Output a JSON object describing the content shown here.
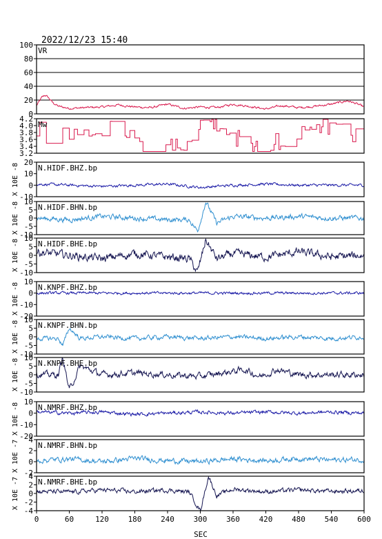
{
  "header": {
    "timestamp": "2022/12/23  15:40"
  },
  "x_axis": {
    "label": "SEC",
    "range": [
      0,
      600
    ],
    "ticks": [
      0,
      60,
      120,
      180,
      240,
      300,
      360,
      420,
      480,
      540,
      600
    ],
    "tick_labels": [
      "0",
      "60",
      "120",
      "180",
      "240",
      "300",
      "360",
      "420",
      "480",
      "540",
      "600"
    ]
  },
  "colors": {
    "vr": "#d8184c",
    "mw": "#d8184c",
    "bhz": "#1a1aa6",
    "bhn": "#2f8fd0",
    "bhe": "#141450",
    "grid": "#000000",
    "frame": "#000000"
  },
  "chart_data": [
    {
      "type": "line",
      "panel": "VR",
      "label": "VR",
      "ylim": [
        0,
        100
      ],
      "yticks": [
        0,
        20,
        40,
        60,
        80,
        100
      ],
      "ytick_labels": [
        "0",
        "20",
        "40",
        "60",
        "80",
        "100"
      ],
      "grid": true,
      "series": [
        {
          "name": "VR",
          "color_key": "vr",
          "shape": "vr",
          "x": [
            0,
            5,
            10,
            15,
            20,
            30,
            40,
            60,
            90,
            120,
            150,
            180,
            210,
            240,
            270,
            300,
            330,
            360,
            390,
            420,
            450,
            480,
            510,
            540,
            570,
            585,
            600
          ],
          "y": [
            12,
            18,
            24,
            27,
            25,
            16,
            11,
            8,
            9,
            10,
            13,
            10,
            9,
            14,
            8,
            10,
            9,
            14,
            11,
            7,
            12,
            9,
            11,
            14,
            19,
            15,
            10
          ]
        }
      ]
    },
    {
      "type": "line",
      "panel": "Mw",
      "label": "Mw",
      "ylim": [
        3.2,
        4.2
      ],
      "yticks": [
        3.2,
        3.4,
        3.6,
        3.8,
        4.0,
        4.2
      ],
      "ytick_labels": [
        "3.2",
        "3.4",
        "3.6",
        "3.8",
        "4.0",
        "4.2"
      ],
      "grid": false,
      "series": [
        {
          "name": "Mw",
          "color_key": "mw",
          "shape": "mw",
          "x": [
            0,
            10,
            20,
            30,
            40,
            50,
            60,
            80,
            100,
            120,
            140,
            160,
            180,
            200,
            220,
            240,
            260,
            280,
            300,
            320,
            340,
            360,
            380,
            400,
            420,
            440,
            460,
            480,
            500,
            520,
            540,
            560,
            580,
            600
          ],
          "y": [
            3.7,
            3.9,
            3.5,
            3.3,
            3.8,
            3.6,
            3.5,
            4.0,
            3.6,
            3.8,
            3.9,
            4.0,
            3.5,
            3.4,
            4.0,
            3.7,
            3.3,
            3.6,
            4.1,
            4.1,
            3.8,
            3.7,
            3.6,
            3.4,
            3.5,
            3.6,
            3.4,
            3.9,
            3.8,
            4.0,
            3.9,
            4.0,
            3.8,
            3.6
          ]
        }
      ]
    },
    {
      "type": "line",
      "panel": "N.HIDF.BHZ.bp",
      "label": "N.HIDF.BHZ.bp",
      "ylabel": "X 10E -8",
      "ylim": [
        -10,
        20
      ],
      "yticks": [
        -10,
        0,
        10,
        20
      ],
      "ytick_labels": [
        "-10",
        "0",
        "10",
        "20"
      ],
      "grid": false,
      "series": [
        {
          "name": "N.HIDF.BHZ.bp",
          "color_key": "bhz",
          "shape": "noise_small",
          "x": [
            0,
            60,
            120,
            180,
            240,
            300,
            360,
            420,
            480,
            540,
            600
          ],
          "y": [
            1,
            0,
            -1,
            0,
            1,
            -2,
            0,
            1,
            0,
            0,
            0
          ]
        }
      ]
    },
    {
      "type": "line",
      "panel": "N.HIDF.BHN.bp",
      "label": "N.HIDF.BHN.bp",
      "ylabel": "X 10E -8",
      "ylim": [
        -10,
        10
      ],
      "yticks": [
        -10,
        -5,
        0,
        5,
        10
      ],
      "ytick_labels": [
        "-10",
        "-5",
        "0",
        "5",
        "10"
      ],
      "grid": false,
      "series": [
        {
          "name": "N.HIDF.BHN.bp",
          "color_key": "bhn",
          "shape": "pulse_hidf",
          "x": [
            0,
            60,
            120,
            180,
            240,
            280,
            295,
            310,
            330,
            360,
            420,
            480,
            540,
            600
          ],
          "y": [
            0,
            -1,
            1,
            0,
            -1,
            -1,
            -8,
            10,
            -3,
            1,
            0,
            1,
            0,
            0
          ]
        }
      ]
    },
    {
      "type": "line",
      "panel": "N.HIDF.BHE.bp",
      "label": "N.HIDF.BHE.bp",
      "ylabel": "X 10E -8",
      "ylim": [
        -10,
        10
      ],
      "yticks": [
        -10,
        -5,
        0,
        5,
        10
      ],
      "ytick_labels": [
        "-10",
        "-5",
        "0",
        "5",
        "10"
      ],
      "grid": false,
      "series": [
        {
          "name": "N.HIDF.BHE.bp",
          "color_key": "bhe",
          "shape": "pulse_hidf_e",
          "x": [
            0,
            60,
            120,
            180,
            240,
            280,
            295,
            310,
            330,
            360,
            420,
            480,
            540,
            600
          ],
          "y": [
            2,
            0,
            -2,
            1,
            -1,
            -2,
            -10,
            9,
            -2,
            1,
            -1,
            2,
            -1,
            0
          ]
        }
      ]
    },
    {
      "type": "line",
      "panel": "N.KNPF.BHZ.bp",
      "label": "N.KNPF.BHZ.bp",
      "ylabel": "X 10E -8",
      "ylim": [
        -20,
        10
      ],
      "yticks": [
        -20,
        -10,
        0,
        10
      ],
      "ytick_labels": [
        "-20",
        "-10",
        "0",
        "10"
      ],
      "grid": false,
      "series": [
        {
          "name": "N.KNPF.BHZ.bp",
          "color_key": "bhz",
          "shape": "noise_small",
          "x": [
            0,
            60,
            120,
            180,
            240,
            300,
            360,
            420,
            480,
            540,
            600
          ],
          "y": [
            0,
            0,
            0,
            0,
            0,
            0,
            0,
            0,
            0,
            0,
            0
          ]
        }
      ]
    },
    {
      "type": "line",
      "panel": "N.KNPF.BHN.bp",
      "label": "N.KNPF.BHN.bp",
      "ylabel": "X 10E -8",
      "ylim": [
        -10,
        10
      ],
      "yticks": [
        -10,
        -5,
        0,
        5,
        10
      ],
      "ytick_labels": [
        "-10",
        "-5",
        "0",
        "5",
        "10"
      ],
      "grid": false,
      "series": [
        {
          "name": "N.KNPF.BHN.bp",
          "color_key": "bhn",
          "shape": "pulse_knpf_n",
          "x": [
            0,
            40,
            48,
            60,
            80,
            120,
            180,
            240,
            300,
            360,
            420,
            480,
            540,
            600
          ],
          "y": [
            -1,
            -1,
            -5,
            5,
            -1,
            0,
            -1,
            0,
            -1,
            0,
            -1,
            0,
            -1,
            0
          ]
        }
      ]
    },
    {
      "type": "line",
      "panel": "N.KNPF.BHE.bp",
      "label": "N.KNPF.BHE.bp",
      "ylabel": "X 10E -8",
      "ylim": [
        -10,
        10
      ],
      "yticks": [
        -10,
        -5,
        0,
        5,
        10
      ],
      "ytick_labels": [
        "-10",
        "-5",
        "0",
        "5",
        "10"
      ],
      "grid": false,
      "series": [
        {
          "name": "N.KNPF.BHE.bp",
          "color_key": "bhe",
          "shape": "pulse_knpf_e",
          "x": [
            0,
            40,
            48,
            60,
            80,
            120,
            180,
            240,
            300,
            380,
            410,
            440,
            480,
            540,
            600
          ],
          "y": [
            0,
            0,
            10,
            -9,
            5,
            0,
            1,
            0,
            -1,
            3,
            -1,
            3,
            0,
            0,
            0
          ]
        }
      ]
    },
    {
      "type": "line",
      "panel": "N.NMRF.BHZ.bp",
      "label": "N.NMRF.BHZ.bp",
      "ylabel": "X 10E -8",
      "ylim": [
        -20,
        10
      ],
      "yticks": [
        -20,
        -10,
        0,
        10
      ],
      "ytick_labels": [
        "-20",
        "-10",
        "0",
        "10"
      ],
      "grid": false,
      "series": [
        {
          "name": "N.NMRF.BHZ.bp",
          "color_key": "bhz",
          "shape": "noise_mid",
          "x": [
            0,
            60,
            120,
            180,
            240,
            300,
            360,
            420,
            480,
            540,
            600
          ],
          "y": [
            1,
            0,
            1,
            -1,
            0,
            1,
            0,
            1,
            0,
            1,
            0
          ]
        }
      ]
    },
    {
      "type": "line",
      "panel": "N.NMRF.BHN.bp",
      "label": "N.NMRF.BHN.bp",
      "ylabel": "X 10E -7",
      "ylim": [
        -2,
        4
      ],
      "yticks": [
        -2,
        0,
        2,
        4
      ],
      "ytick_labels": [
        "-2",
        "0",
        "2",
        "4"
      ],
      "grid": false,
      "series": [
        {
          "name": "N.NMRF.BHN.bp",
          "color_key": "bhn",
          "shape": "wavy",
          "x": [
            0,
            60,
            120,
            180,
            240,
            300,
            360,
            420,
            480,
            540,
            600
          ],
          "y": [
            0.2,
            0.5,
            0,
            0.6,
            0.2,
            0,
            0.5,
            0.2,
            0.6,
            0.3,
            0.4
          ]
        }
      ]
    },
    {
      "type": "line",
      "panel": "N.NMRF.BHE.bp",
      "label": "N.NMRF.BHE.bp",
      "ylabel": "X 10E -7",
      "ylim": [
        -4,
        4
      ],
      "yticks": [
        -4,
        -2,
        0,
        2,
        4
      ],
      "ytick_labels": [
        "-4",
        "-2",
        "0",
        "2",
        "4"
      ],
      "grid": false,
      "series": [
        {
          "name": "N.NMRF.BHE.bp",
          "color_key": "bhe",
          "shape": "pulse_nmrf",
          "x": [
            0,
            60,
            120,
            180,
            240,
            280,
            300,
            315,
            330,
            360,
            420,
            480,
            540,
            600
          ],
          "y": [
            0.5,
            0.3,
            0.8,
            0.4,
            0.8,
            0.3,
            -4,
            4,
            -0.5,
            1,
            0.4,
            0.8,
            0.5,
            0.6
          ]
        }
      ]
    }
  ]
}
